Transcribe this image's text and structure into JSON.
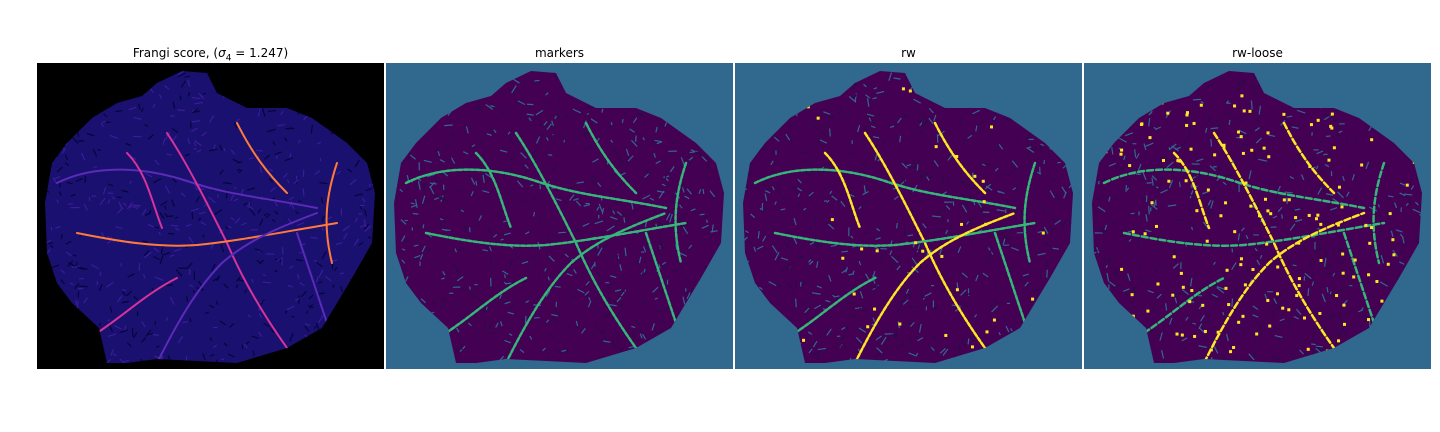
{
  "figure": {
    "panels": [
      {
        "title_prefix": "Frangi score, (",
        "title_symbol": "σ",
        "title_subscript": "4",
        "title_suffix": " = 1.247)",
        "background": "#000000",
        "tissue_base": "#1a1070",
        "vessel_colors": [
          "#3a1c9a",
          "#5b2bb8",
          "#d6339a",
          "#ff7a3a"
        ],
        "texture_dark": "#05053a"
      },
      {
        "title": "markers",
        "background": "#31688e",
        "tissue_base": "#440154",
        "vessel_colors": [
          "#31688e",
          "#35b779"
        ],
        "texture_dark": "#2c0a46"
      },
      {
        "title": "rw",
        "background": "#31688e",
        "tissue_base": "#440154",
        "vessel_colors": [
          "#31688e",
          "#35b779",
          "#fde725"
        ],
        "texture_dark": "#2c0a46"
      },
      {
        "title": "rw-loose",
        "background": "#31688e",
        "tissue_base": "#440154",
        "vessel_colors": [
          "#31688e",
          "#35b779",
          "#fde725"
        ],
        "texture_dark": "#2c0a46"
      }
    ]
  }
}
